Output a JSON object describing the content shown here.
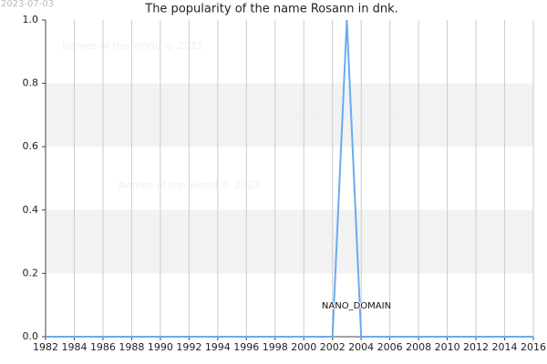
{
  "chart_data": {
    "type": "line",
    "title": "The popularity of the name Rosann in dnk.",
    "date_stamp": "2023-07-03",
    "watermarks": [
      "Names of the World © 2023",
      "Names of the World © 2023",
      "Names of the World © 2023"
    ],
    "annotation": "NANO_DOMAIN",
    "x": [
      1982,
      1983,
      1984,
      1985,
      1986,
      1987,
      1988,
      1989,
      1990,
      1991,
      1992,
      1993,
      1994,
      1995,
      1996,
      1997,
      1998,
      1999,
      2000,
      2001,
      2002,
      2003,
      2004,
      2005,
      2006,
      2007,
      2008,
      2009,
      2010,
      2011,
      2012,
      2013,
      2014,
      2015,
      2016
    ],
    "values": [
      0,
      0,
      0,
      0,
      0,
      0,
      0,
      0,
      0,
      0,
      0,
      0,
      0,
      0,
      0,
      0,
      0,
      0,
      0,
      0,
      0,
      1,
      0,
      0,
      0,
      0,
      0,
      0,
      0,
      0,
      0,
      0,
      0,
      0,
      0
    ],
    "color": "#6aaaf0",
    "xlim": [
      1982,
      2016
    ],
    "xticks": [
      1982,
      1984,
      1986,
      1988,
      1990,
      1992,
      1994,
      1996,
      1998,
      2000,
      2002,
      2004,
      2006,
      2008,
      2010,
      2012,
      2014,
      2016
    ],
    "ylim": [
      0,
      1
    ],
    "yticks": [
      {
        "value": 0,
        "label": "0.0"
      },
      0.2,
      0.4,
      0.6,
      0.8,
      {
        "value": 1,
        "label": "1.0"
      }
    ],
    "grid": true,
    "bands": true
  }
}
